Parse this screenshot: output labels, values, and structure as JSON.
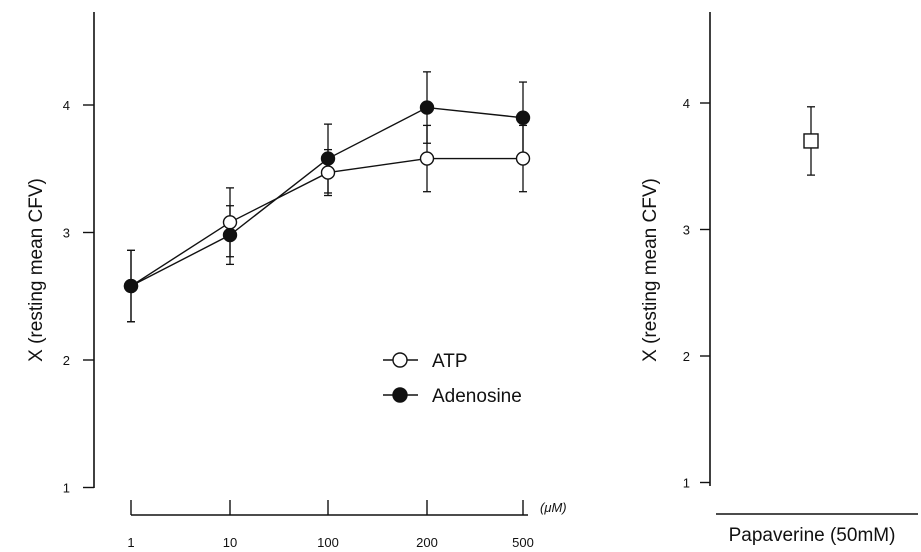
{
  "chart_data": [
    {
      "type": "line",
      "ylabel": "X (resting mean CFV)",
      "unit": "(μM)",
      "categories": [
        "1",
        "10",
        "100",
        "200",
        "500"
      ],
      "yticks": [
        "1",
        "2",
        "3",
        "4"
      ],
      "ylim": [
        1,
        4.7
      ],
      "series": [
        {
          "name": "ATP",
          "marker": "open-circle",
          "color": "#111111",
          "values": [
            2.58,
            3.08,
            3.47,
            3.58,
            3.58
          ],
          "error": [
            0.28,
            0.27,
            0.18,
            0.26,
            0.26
          ]
        },
        {
          "name": "Adenosine",
          "marker": "filled-circle",
          "color": "#111111",
          "values": [
            2.58,
            2.98,
            3.58,
            3.98,
            3.9
          ],
          "error": [
            0.28,
            0.23,
            0.27,
            0.28,
            0.28
          ]
        }
      ],
      "legend": {
        "position": "lower-right",
        "entries": [
          "ATP",
          "Adenosine"
        ]
      },
      "grid": false
    },
    {
      "type": "scatter",
      "ylabel": "X (resting mean CFV)",
      "xlabel": "Papaverine (50mM)",
      "yticks": [
        "1",
        "2",
        "3",
        "4"
      ],
      "ylim": [
        1,
        4.7
      ],
      "series": [
        {
          "name": "Papaverine (50mM)",
          "marker": "open-square",
          "color": "#111111",
          "values": [
            3.7
          ],
          "error": [
            0.27
          ]
        }
      ],
      "grid": false
    }
  ]
}
